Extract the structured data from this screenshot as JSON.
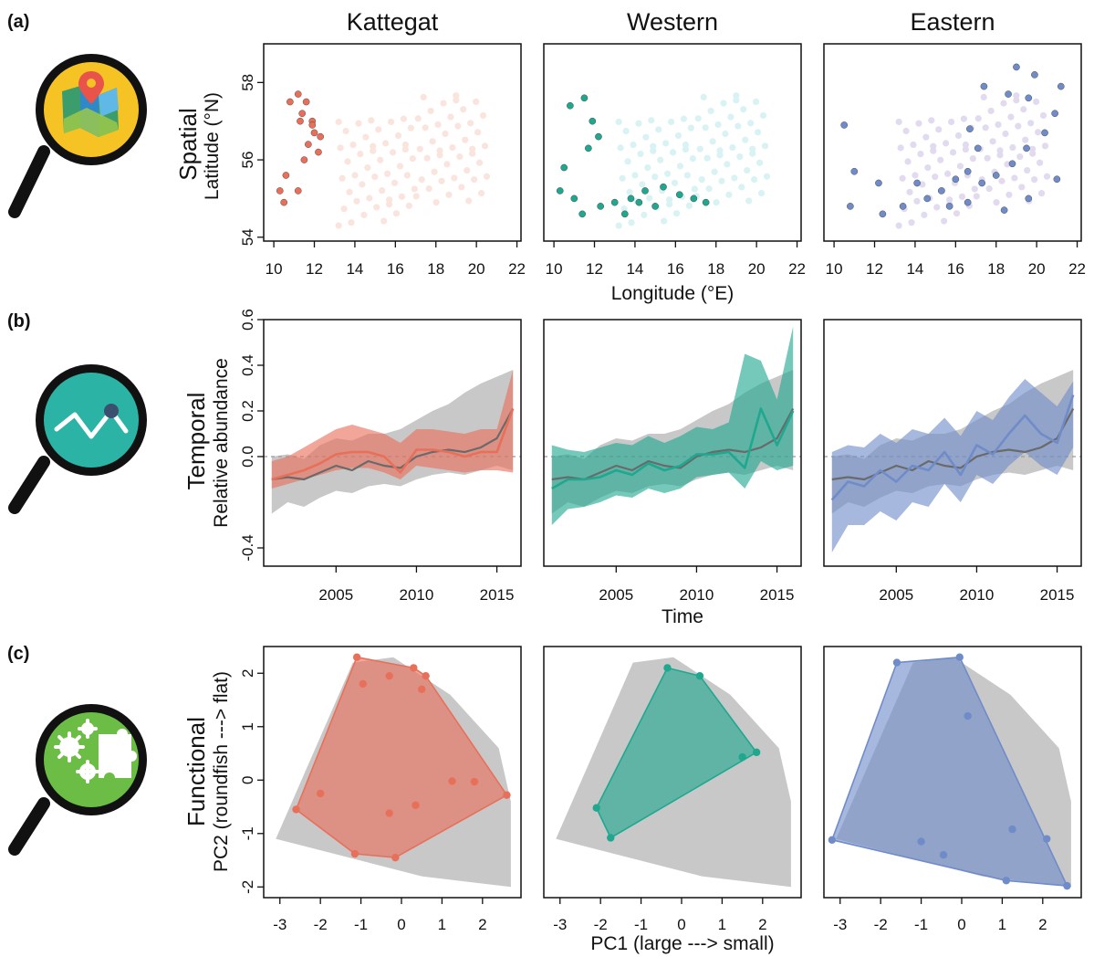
{
  "panels": {
    "a": "(a)",
    "b": "(b)",
    "c": "(c)"
  },
  "columns": [
    "Kattegat",
    "Western",
    "Eastern"
  ],
  "icons": [
    "map-magnifier-icon",
    "trend-magnifier-icon",
    "gears-puzzle-magnifier-icon"
  ],
  "colors": {
    "kattegat": "#e8705a",
    "western": "#1fa88f",
    "eastern": "#6f8cc9",
    "reference": "#c8c8c8",
    "land": "#d2d2d2"
  },
  "chart_data": [
    {
      "id": "spatial",
      "type": "scatter",
      "row_title": "Spatial",
      "ylabel": "Latitude (°N)",
      "xlabel": "Longitude (°E)",
      "xlim": [
        9.5,
        22.2
      ],
      "ylim": [
        53.9,
        59.0
      ],
      "x_ticks": [
        "10",
        "12",
        "14",
        "16",
        "18",
        "20",
        "22"
      ],
      "y_ticks": [
        "54",
        "56",
        "58"
      ],
      "grid": false,
      "series": [
        {
          "region": "Kattegat",
          "points": [
            [
              10.8,
              57.5
            ],
            [
              11.2,
              57.7
            ],
            [
              11.6,
              57.5
            ],
            [
              11.4,
              57.2
            ],
            [
              11.9,
              57.0
            ],
            [
              12.0,
              56.7
            ],
            [
              11.7,
              56.4
            ],
            [
              12.2,
              56.2
            ],
            [
              11.5,
              56.0
            ],
            [
              11.9,
              56.9
            ],
            [
              11.3,
              57.0
            ],
            [
              12.3,
              56.6
            ],
            [
              10.6,
              55.6
            ],
            [
              10.3,
              55.2
            ],
            [
              11.2,
              55.2
            ],
            [
              10.5,
              54.9
            ]
          ]
        },
        {
          "region": "Western",
          "points": [
            [
              10.8,
              57.4
            ],
            [
              11.5,
              57.6
            ],
            [
              11.9,
              57.0
            ],
            [
              12.2,
              56.6
            ],
            [
              11.7,
              56.3
            ],
            [
              10.5,
              55.8
            ],
            [
              10.3,
              55.2
            ],
            [
              11.0,
              55.0
            ],
            [
              11.4,
              54.6
            ],
            [
              12.3,
              54.8
            ],
            [
              13.0,
              54.9
            ],
            [
              13.8,
              55.0
            ],
            [
              14.5,
              55.2
            ],
            [
              15.4,
              55.3
            ],
            [
              16.2,
              55.1
            ],
            [
              13.5,
              54.6
            ],
            [
              15.0,
              54.8
            ],
            [
              16.9,
              55.0
            ],
            [
              17.5,
              54.9
            ],
            [
              14.2,
              54.9
            ]
          ]
        },
        {
          "region": "Eastern",
          "points": [
            [
              10.5,
              56.9
            ],
            [
              11.0,
              55.7
            ],
            [
              10.8,
              54.8
            ],
            [
              12.4,
              54.6
            ],
            [
              13.4,
              54.8
            ],
            [
              14.6,
              55.0
            ],
            [
              15.3,
              55.2
            ],
            [
              16.0,
              55.5
            ],
            [
              16.6,
              55.7
            ],
            [
              17.3,
              55.4
            ],
            [
              18.0,
              55.6
            ],
            [
              18.8,
              55.9
            ],
            [
              19.5,
              56.3
            ],
            [
              20.4,
              56.7
            ],
            [
              20.9,
              57.2
            ],
            [
              19.6,
              57.6
            ],
            [
              18.6,
              57.7
            ],
            [
              17.4,
              57.9
            ],
            [
              16.7,
              56.8
            ],
            [
              17.1,
              56.3
            ],
            [
              19.0,
              58.4
            ],
            [
              21.2,
              57.9
            ],
            [
              15.7,
              54.8
            ],
            [
              16.6,
              54.9
            ],
            [
              18.4,
              54.7
            ],
            [
              19.6,
              55.0
            ],
            [
              21.0,
              55.5
            ],
            [
              14.1,
              55.4
            ],
            [
              12.2,
              55.4
            ],
            [
              19.9,
              58.2
            ]
          ]
        }
      ]
    },
    {
      "id": "temporal",
      "type": "line",
      "row_title": "Temporal",
      "ylabel": "Relative abundance",
      "xlabel": "Time",
      "xlim": [
        2000.5,
        2016.5
      ],
      "ylim": [
        -0.48,
        0.6
      ],
      "x_ticks": [
        "2005",
        "2010",
        "2015"
      ],
      "y_ticks": [
        "-0.4",
        "0.0",
        "0.2",
        "0.4",
        "0.6"
      ],
      "grid": false,
      "x": [
        2001,
        2002,
        2003,
        2004,
        2005,
        2006,
        2007,
        2008,
        2009,
        2010,
        2011,
        2012,
        2013,
        2014,
        2015,
        2016
      ],
      "reference": {
        "name": "All",
        "mean": [
          -0.1,
          -0.09,
          -0.1,
          -0.07,
          -0.04,
          -0.06,
          -0.02,
          -0.04,
          -0.05,
          0.0,
          0.02,
          0.03,
          0.02,
          0.04,
          0.08,
          0.21
        ],
        "lower": [
          -0.25,
          -0.2,
          -0.22,
          -0.18,
          -0.15,
          -0.16,
          -0.13,
          -0.12,
          -0.13,
          -0.1,
          -0.08,
          -0.07,
          -0.08,
          -0.06,
          -0.04,
          -0.06
        ],
        "upper": [
          0.0,
          0.01,
          -0.01,
          0.05,
          0.08,
          0.07,
          0.1,
          0.1,
          0.12,
          0.16,
          0.2,
          0.23,
          0.28,
          0.32,
          0.35,
          0.38
        ]
      },
      "series": [
        {
          "region": "Kattegat",
          "mean": [
            -0.1,
            -0.08,
            -0.06,
            -0.03,
            0.01,
            0.02,
            0.02,
            0.0,
            -0.07,
            0.03,
            0.03,
            0.02,
            0.0,
            0.02,
            0.02,
            0.21
          ],
          "lower": [
            -0.14,
            -0.12,
            -0.1,
            -0.08,
            -0.06,
            -0.05,
            -0.05,
            -0.07,
            -0.1,
            -0.04,
            -0.05,
            -0.06,
            -0.07,
            -0.06,
            -0.06,
            -0.07
          ],
          "upper": [
            -0.02,
            0.0,
            0.04,
            0.08,
            0.12,
            0.14,
            0.12,
            0.1,
            0.06,
            0.12,
            0.12,
            0.11,
            0.1,
            0.12,
            0.12,
            0.38
          ]
        },
        {
          "region": "Western",
          "mean": [
            -0.14,
            -0.1,
            -0.1,
            -0.09,
            -0.06,
            -0.08,
            -0.03,
            -0.06,
            -0.04,
            0.01,
            0.01,
            0.02,
            -0.05,
            0.21,
            0.05,
            0.2
          ],
          "lower": [
            -0.3,
            -0.23,
            -0.22,
            -0.2,
            -0.17,
            -0.18,
            -0.14,
            -0.16,
            -0.14,
            -0.09,
            -0.08,
            -0.07,
            -0.14,
            -0.02,
            -0.06,
            -0.04
          ],
          "upper": [
            0.05,
            0.03,
            0.02,
            0.04,
            0.06,
            0.05,
            0.09,
            0.06,
            0.09,
            0.13,
            0.12,
            0.15,
            0.45,
            0.42,
            0.25,
            0.57
          ]
        },
        {
          "region": "Eastern",
          "mean": [
            -0.19,
            -0.11,
            -0.13,
            -0.06,
            -0.11,
            -0.04,
            -0.06,
            0.02,
            -0.08,
            0.05,
            0.01,
            0.1,
            0.18,
            0.1,
            0.06,
            0.27
          ],
          "lower": [
            -0.42,
            -0.3,
            -0.3,
            -0.24,
            -0.28,
            -0.2,
            -0.22,
            -0.12,
            -0.2,
            -0.08,
            -0.12,
            -0.04,
            0.02,
            -0.04,
            -0.08,
            0.04
          ],
          "upper": [
            0.02,
            0.05,
            0.04,
            0.1,
            0.06,
            0.12,
            0.1,
            0.17,
            0.09,
            0.2,
            0.16,
            0.26,
            0.34,
            0.28,
            0.22,
            0.33
          ]
        }
      ]
    },
    {
      "id": "functional",
      "type": "scatter",
      "row_title": "Functional",
      "ylabel": "PC2 (roundfish ---> flat)",
      "xlabel": "PC1 (large ---> small)",
      "xlim": [
        -3.4,
        2.95
      ],
      "ylim": [
        -2.2,
        2.5
      ],
      "x_ticks": [
        "-3",
        "-2",
        "-1",
        "0",
        "1",
        "2"
      ],
      "y_ticks": [
        "-2",
        "-1",
        "0",
        "1",
        "2"
      ],
      "grid": false,
      "reference_hull": [
        [
          -1.2,
          2.2
        ],
        [
          -0.2,
          2.3
        ],
        [
          1.2,
          1.6
        ],
        [
          2.4,
          0.6
        ],
        [
          2.7,
          -0.4
        ],
        [
          2.7,
          -2.0
        ],
        [
          0.5,
          -1.8
        ],
        [
          -3.1,
          -1.1
        ]
      ],
      "series": [
        {
          "region": "Kattegat",
          "points": [
            [
              -1.1,
              2.3
            ],
            [
              0.3,
              2.1
            ],
            [
              0.6,
              1.95
            ],
            [
              0.5,
              1.7
            ],
            [
              -0.3,
              1.95
            ],
            [
              -0.95,
              1.8
            ],
            [
              -2.0,
              -0.25
            ],
            [
              -2.6,
              -0.55
            ],
            [
              -0.3,
              -0.62
            ],
            [
              0.35,
              -0.47
            ],
            [
              1.25,
              -0.02
            ],
            [
              1.8,
              -0.03
            ],
            [
              2.6,
              -0.28
            ],
            [
              -1.15,
              -1.38
            ],
            [
              -0.15,
              -1.45
            ]
          ],
          "hull": [
            [
              -1.1,
              2.3
            ],
            [
              0.3,
              2.1
            ],
            [
              0.6,
              1.95
            ],
            [
              2.6,
              -0.28
            ],
            [
              -0.15,
              -1.45
            ],
            [
              -1.15,
              -1.38
            ],
            [
              -2.6,
              -0.55
            ]
          ]
        },
        {
          "region": "Western",
          "points": [
            [
              -0.35,
              2.1
            ],
            [
              0.45,
              1.95
            ],
            [
              1.85,
              0.52
            ],
            [
              1.5,
              0.43
            ],
            [
              -2.1,
              -0.52
            ],
            [
              -1.75,
              -1.08
            ]
          ],
          "hull": [
            [
              -0.35,
              2.1
            ],
            [
              0.45,
              1.95
            ],
            [
              1.85,
              0.52
            ],
            [
              -1.75,
              -1.08
            ],
            [
              -2.1,
              -0.52
            ]
          ]
        },
        {
          "region": "Eastern",
          "points": [
            [
              -1.6,
              2.2
            ],
            [
              -0.05,
              2.3
            ],
            [
              0.15,
              1.2
            ],
            [
              -3.2,
              -1.12
            ],
            [
              -1.0,
              -1.15
            ],
            [
              -0.45,
              -1.4
            ],
            [
              1.25,
              -0.92
            ],
            [
              2.1,
              -1.1
            ],
            [
              1.1,
              -1.88
            ],
            [
              2.6,
              -1.98
            ]
          ],
          "hull": [
            [
              -1.6,
              2.2
            ],
            [
              -0.05,
              2.3
            ],
            [
              2.6,
              -1.98
            ],
            [
              1.1,
              -1.88
            ],
            [
              -3.2,
              -1.12
            ]
          ]
        }
      ]
    }
  ]
}
